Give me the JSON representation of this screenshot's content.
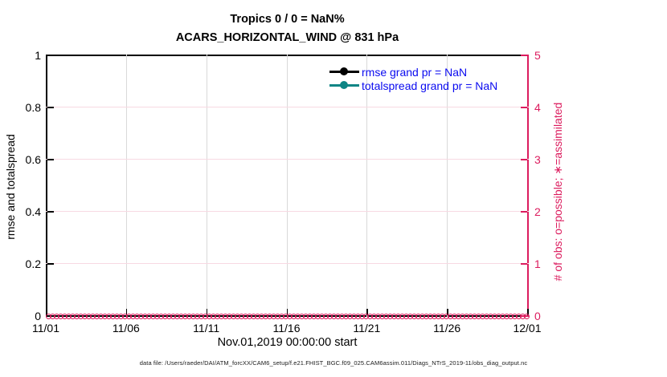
{
  "title": {
    "line1": "Tropics 0 / 0 = NaN%",
    "line2": "ACARS_HORIZONTAL_WIND @ 831 hPa"
  },
  "legend": {
    "entries": [
      {
        "label": "rmse grand pr = NaN",
        "color": "#000000"
      },
      {
        "label": "totalspread grand pr = NaN",
        "color": "#0d8585"
      }
    ],
    "text_color": "#0a0af0"
  },
  "footer": "data file: /Users/raeder/DAI/ATM_forcXX/CAM6_setup/f.e21.FHIST_BGC.f09_025.CAM6assim.011/Diags_NTrS_2019-11/obs_diag_output.nc",
  "colors": {
    "obs_axis": "#dc1c5e",
    "grid_vertical": "#d9d9d9",
    "grid_horizontal": "#f7d9e2",
    "axis_black": "#000000"
  },
  "chart_data": {
    "type": "line",
    "title": "Tropics 0 / 0 = NaN%",
    "subtitle": "ACARS_HORIZONTAL_WIND @ 831 hPa",
    "xlabel": "Nov.01,2019 00:00:00 start",
    "ylabel_left": "rmse and totalspread",
    "ylabel_right": "# of obs: o=possible; ∗=assimilated",
    "x_tick_labels": [
      "11/01",
      "11/06",
      "11/11",
      "11/16",
      "11/21",
      "11/26",
      "12/01"
    ],
    "y_left_ticks": [
      "0",
      "0.2",
      "0.4",
      "0.6",
      "0.8",
      "1"
    ],
    "y_left_range": [
      0,
      1
    ],
    "y_right_ticks": [
      "0",
      "1",
      "2",
      "3",
      "4",
      "5"
    ],
    "y_right_range": [
      0,
      5
    ],
    "grid": true,
    "legend_position": "upper-right-inside",
    "series": [
      {
        "name": "rmse",
        "grand_pr": "NaN",
        "values": "NaN (no visible curve)"
      },
      {
        "name": "totalspread",
        "grand_pr": "NaN",
        "values": "NaN (no visible curve)"
      }
    ],
    "obs_counts": {
      "description": "possible (o) and assimilated (*) observation counts, all zero along baseline",
      "n_points": 120,
      "value_at_all_times": 0
    }
  }
}
